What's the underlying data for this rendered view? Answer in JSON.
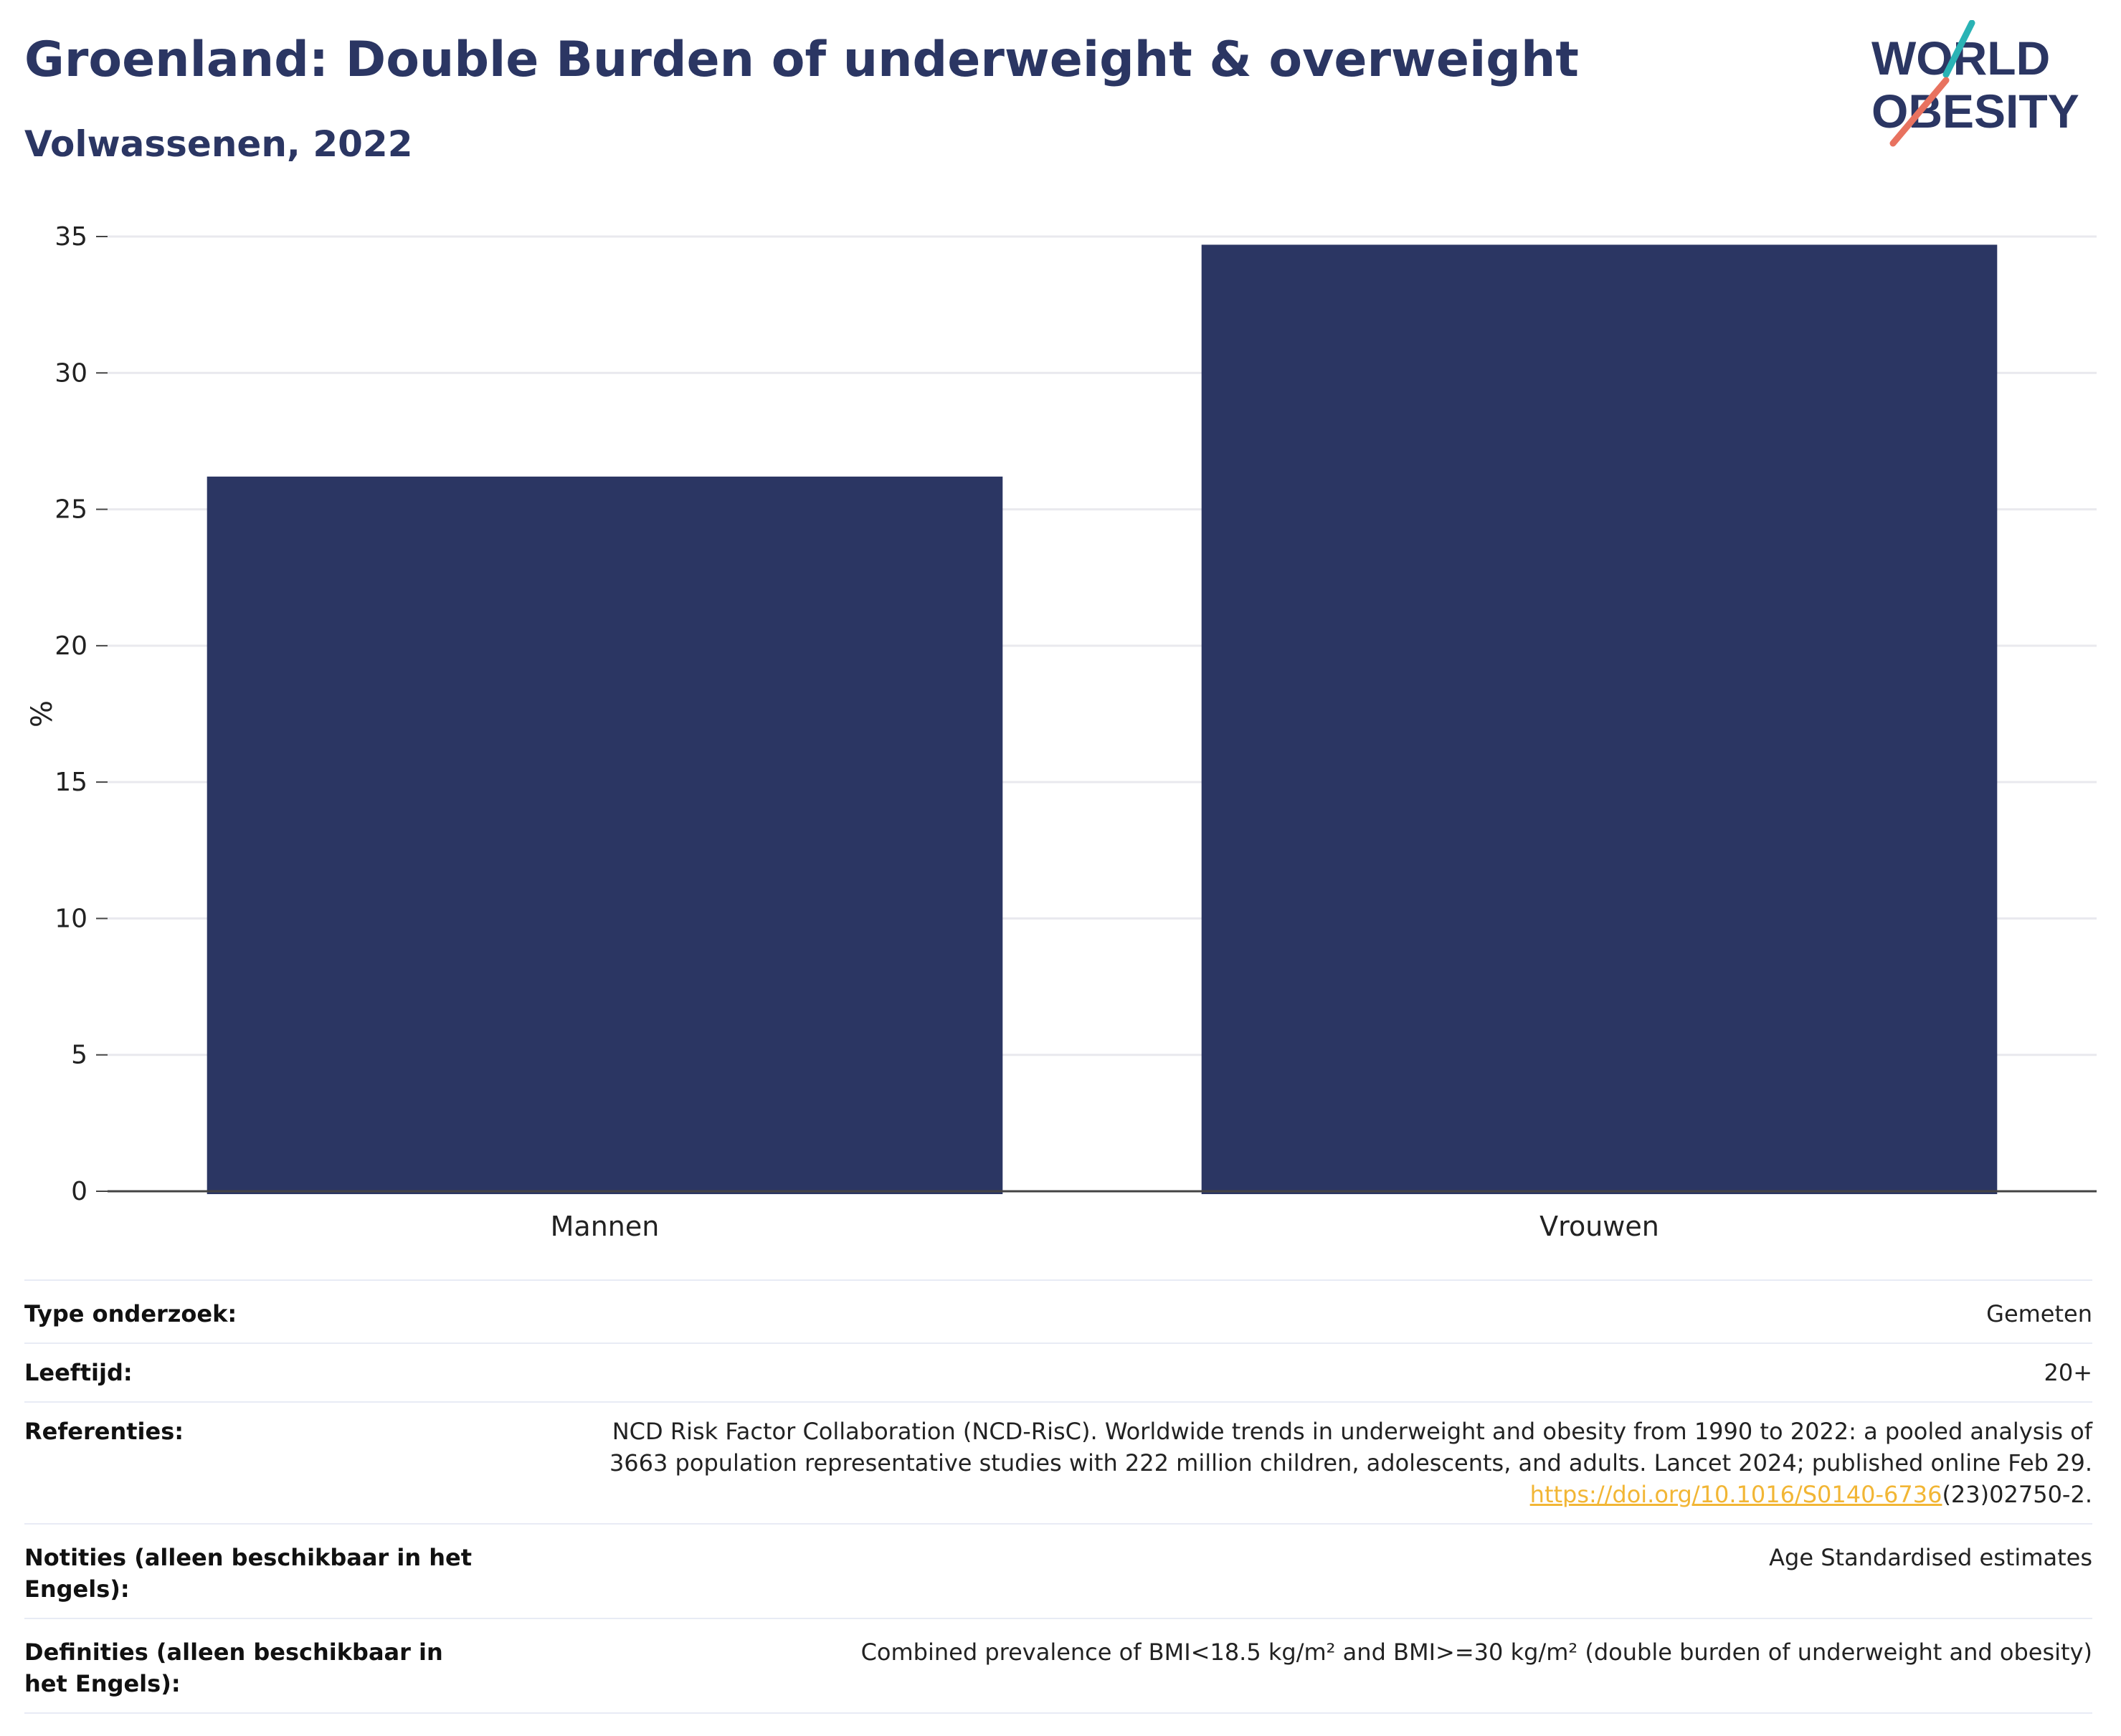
{
  "header": {
    "title": "Groenland: Double Burden of underweight & overweight",
    "subtitle": "Volwassenen, 2022"
  },
  "logo": {
    "line1": "WORLD",
    "line2": "OBESITY"
  },
  "colors": {
    "bar": "#2b3663",
    "title": "#2b3663",
    "grid": "#e9e9ee",
    "link": "#f2b635",
    "logo_teal": "#2ab3b5",
    "logo_coral": "#e8725f"
  },
  "chart_data": {
    "type": "bar",
    "categories": [
      "Mannen",
      "Vrouwen"
    ],
    "values": [
      26.2,
      34.7
    ],
    "ylabel": "%",
    "xlabel": "",
    "ylim": [
      0,
      35
    ],
    "yticks": [
      0,
      5,
      10,
      15,
      20,
      25,
      30,
      35
    ],
    "grid": true,
    "legend": "none"
  },
  "meta": {
    "type": {
      "label": "Type onderzoek:",
      "value": "Gemeten"
    },
    "age": {
      "label": "Leeftijd:",
      "value": "20+"
    },
    "refs": {
      "label": "Referenties:",
      "line1": "NCD Risk Factor Collaboration (NCD-RisC). Worldwide trends in underweight and obesity from 1990 to 2022: a pooled analysis of",
      "line2": "3663 population representative studies with 222 million children, adolescents, and adults. Lancet 2024; published online Feb 29.",
      "link": "https://doi.org/10.1016/S0140-6736",
      "tail": "(23)02750-2."
    },
    "notes": {
      "label": "Notities (alleen beschikbaar in het Engels):",
      "value": "Age Standardised estimates"
    },
    "defs": {
      "label": "Definities (alleen beschikbaar in het Engels):",
      "value": "Combined prevalence of BMI<18.5 kg/m² and BMI>=30 kg/m² (double burden of underweight and obesity)"
    }
  }
}
